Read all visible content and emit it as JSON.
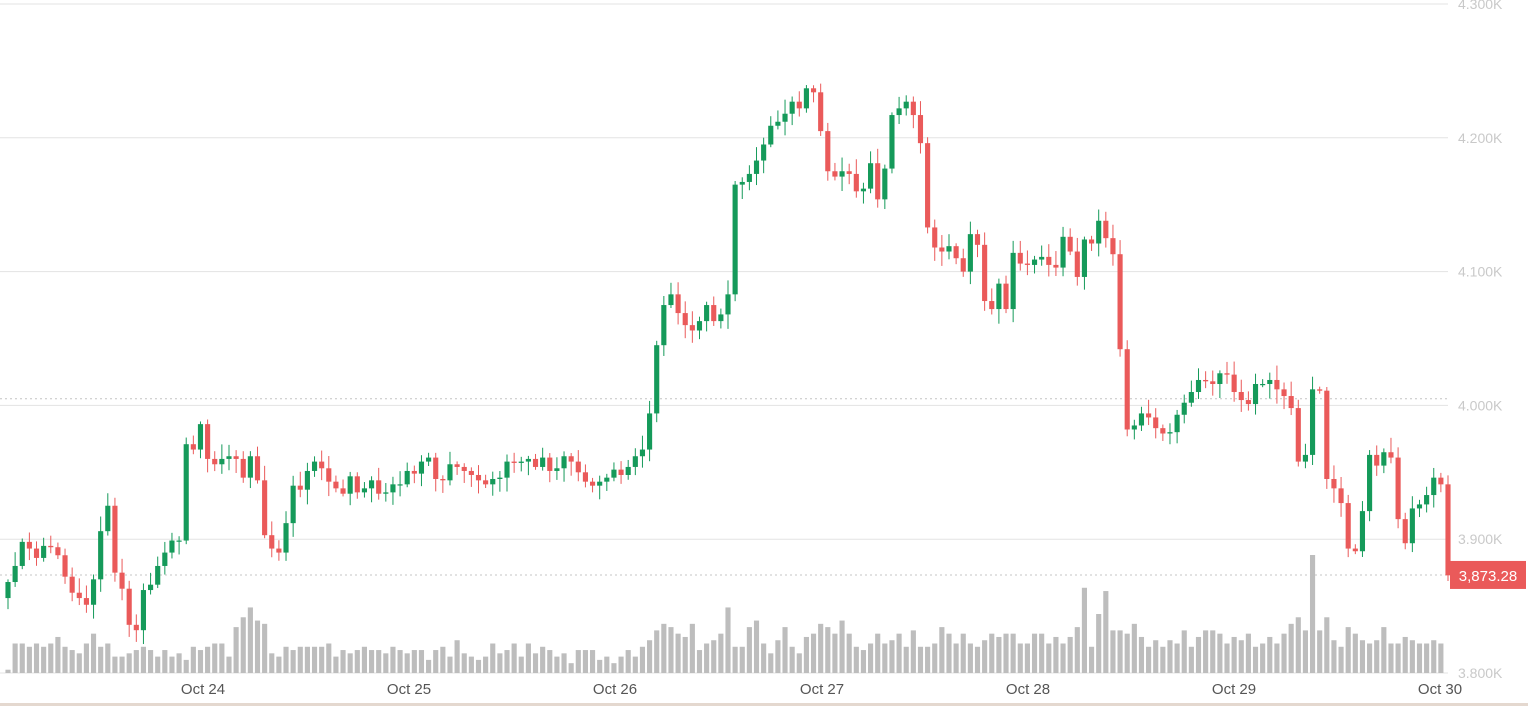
{
  "chart_data": {
    "type": "candlestick",
    "x_ticks": [
      "Oct 24",
      "Oct 25",
      "Oct 26",
      "Oct 27",
      "Oct 28",
      "Oct 29",
      "Oct 30"
    ],
    "y_ticks": [
      "3.800K",
      "3.900K",
      "4.000K",
      "4.100K",
      "4.200K",
      "4.300K"
    ],
    "y_tick_values": [
      3800,
      3900,
      4000,
      4100,
      4200,
      4300
    ],
    "ylim": [
      3800,
      4300
    ],
    "grid": true,
    "reference_price": 4005,
    "last_price_value": 3873.28,
    "last_price_label": "3,873.28",
    "colors": {
      "up": "#159a5a",
      "down": "#ea5a5a",
      "volume": "#bdbdbd",
      "grid": "#e3e3e3",
      "axis_text": "#c9c9c9",
      "price_tag": "#ea5a5a"
    },
    "closes": [
      3868,
      3880,
      3898,
      3893,
      3886,
      3895,
      3894,
      3888,
      3872,
      3860,
      3856,
      3851,
      3870,
      3906,
      3925,
      3875,
      3863,
      3836,
      3832,
      3862,
      3866,
      3880,
      3890,
      3899,
      3899,
      3971,
      3967,
      3986,
      3960,
      3956,
      3960,
      3962,
      3960,
      3946,
      3962,
      3944,
      3903,
      3893,
      3890,
      3912,
      3940,
      3937,
      3951,
      3958,
      3953,
      3943,
      3938,
      3934,
      3947,
      3935,
      3938,
      3944,
      3934,
      3935,
      3941,
      3941,
      3951,
      3949,
      3958,
      3961,
      3945,
      3944,
      3956,
      3954,
      3951,
      3948,
      3944,
      3941,
      3945,
      3946,
      3958,
      3957,
      3958,
      3960,
      3954,
      3961,
      3951,
      3953,
      3962,
      3958,
      3950,
      3943,
      3940,
      3943,
      3946,
      3952,
      3948,
      3954,
      3962,
      3967,
      3994,
      4045,
      4075,
      4083,
      4069,
      4060,
      4056,
      4063,
      4075,
      4063,
      4068,
      4083,
      4165,
      4167,
      4173,
      4183,
      4195,
      4209,
      4212,
      4218,
      4227,
      4222,
      4237,
      4234,
      4205,
      4175,
      4171,
      4175,
      4173,
      4160,
      4162,
      4181,
      4154,
      4177,
      4217,
      4222,
      4227,
      4217,
      4196,
      4133,
      4118,
      4115,
      4119,
      4110,
      4100,
      4128,
      4120,
      4078,
      4072,
      4091,
      4072,
      4114,
      4106,
      4105,
      4109,
      4111,
      4105,
      4103,
      4126,
      4115,
      4096,
      4124,
      4121,
      4138,
      4125,
      4113,
      4042,
      3982,
      3985,
      3994,
      3991,
      3983,
      3979,
      3980,
      3993,
      4002,
      4010,
      4019,
      4018,
      4016,
      4024,
      4023,
      4010,
      4004,
      4001,
      4016,
      4016,
      4019,
      4012,
      4007,
      3998,
      3958,
      3963,
      4012,
      4011,
      3945,
      3938,
      3927,
      3893,
      3891,
      3921,
      3963,
      3955,
      3965,
      3961,
      3915,
      3897,
      3923,
      3926,
      3933,
      3946,
      3941,
      3873
    ],
    "volumes": [
      1,
      9,
      9,
      8,
      9,
      8,
      9,
      11,
      8,
      7,
      6,
      9,
      12,
      8,
      9,
      5,
      5,
      6,
      7,
      8,
      7,
      5,
      7,
      5,
      6,
      4,
      8,
      7,
      8,
      9,
      9,
      5,
      14,
      17,
      20,
      16,
      15,
      6,
      5,
      8,
      7,
      8,
      8,
      8,
      8,
      9,
      5,
      7,
      6,
      7,
      8,
      7,
      7,
      6,
      8,
      7,
      6,
      7,
      7,
      4,
      7,
      8,
      5,
      10,
      6,
      5,
      4,
      5,
      9,
      6,
      7,
      9,
      5,
      9,
      6,
      8,
      7,
      5,
      6,
      3,
      7,
      7,
      7,
      4,
      5,
      3,
      5,
      7,
      5,
      8,
      10,
      13,
      15,
      14,
      12,
      11,
      15,
      7,
      9,
      10,
      12,
      20,
      8,
      8,
      14,
      16,
      9,
      6,
      10,
      14,
      8,
      6,
      11,
      12,
      15,
      14,
      12,
      16,
      12,
      8,
      7,
      9,
      12,
      9,
      10,
      12,
      8,
      13,
      8,
      8,
      9,
      14,
      12,
      9,
      12,
      9,
      8,
      10,
      12,
      11,
      12,
      12,
      9,
      9,
      12,
      12,
      9,
      11,
      9,
      11,
      14,
      26,
      8,
      18,
      25,
      13,
      13,
      12,
      15,
      11,
      8,
      10,
      8,
      10,
      9,
      13,
      8,
      11,
      13,
      13,
      12,
      9,
      11,
      10,
      12,
      8,
      9,
      11,
      9,
      12,
      15,
      17,
      13,
      36,
      13,
      17,
      10,
      8,
      14,
      12,
      10,
      9,
      10,
      14,
      9,
      9,
      11,
      10,
      9,
      9,
      10,
      9
    ]
  }
}
